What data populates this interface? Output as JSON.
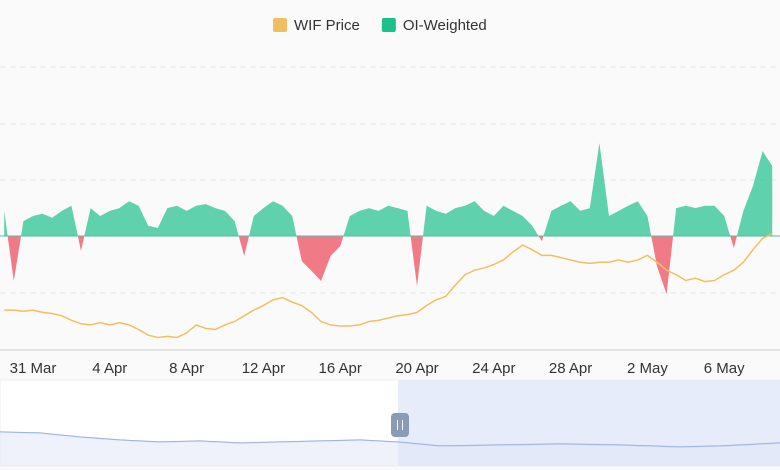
{
  "chart_data": {
    "type": "line-area",
    "categories": [
      null,
      null,
      null,
      "31 Mar",
      null,
      null,
      null,
      null,
      null,
      null,
      null,
      "4 Apr",
      null,
      null,
      null,
      null,
      null,
      null,
      null,
      "8 Apr",
      null,
      null,
      null,
      null,
      null,
      null,
      null,
      "12 Apr",
      null,
      null,
      null,
      null,
      null,
      null,
      null,
      "16 Apr",
      null,
      null,
      null,
      null,
      null,
      null,
      null,
      "20 Apr",
      null,
      null,
      null,
      null,
      null,
      null,
      null,
      "24 Apr",
      null,
      null,
      null,
      null,
      null,
      null,
      null,
      "28 Apr",
      null,
      null,
      null,
      null,
      null,
      null,
      null,
      "2 May",
      null,
      null,
      null,
      null,
      null,
      null,
      null,
      "6 May",
      null,
      null,
      null,
      null,
      null
    ],
    "series": [
      {
        "name": "WIF Price",
        "color": "#f0c060",
        "axis": "y2",
        "values": [
          1.85,
          1.85,
          1.84,
          1.85,
          1.83,
          1.82,
          1.8,
          1.76,
          1.73,
          1.72,
          1.74,
          1.72,
          1.74,
          1.72,
          1.68,
          1.63,
          1.61,
          1.62,
          1.61,
          1.65,
          1.72,
          1.69,
          1.68,
          1.72,
          1.75,
          1.8,
          1.85,
          1.89,
          1.94,
          1.96,
          1.92,
          1.89,
          1.83,
          1.75,
          1.72,
          1.71,
          1.71,
          1.72,
          1.75,
          1.76,
          1.78,
          1.8,
          1.81,
          1.83,
          1.89,
          1.94,
          1.97,
          2.07,
          2.16,
          2.2,
          2.22,
          2.25,
          2.29,
          2.36,
          2.42,
          2.38,
          2.33,
          2.33,
          2.31,
          2.29,
          2.27,
          2.26,
          2.27,
          2.27,
          2.29,
          2.27,
          2.29,
          2.33,
          2.27,
          2.2,
          2.16,
          2.11,
          2.13,
          2.1,
          2.11,
          2.16,
          2.2,
          2.27,
          2.38,
          2.48,
          2.52
        ]
      },
      {
        "name": "OI-Weighted",
        "color": "#1dbf8a",
        "negative_color": "#ef6b7a",
        "values": [
          0.44,
          -0.79,
          0.26,
          0.35,
          0.39,
          0.32,
          0.44,
          0.53,
          -0.26,
          0.49,
          0.35,
          0.44,
          0.49,
          0.61,
          0.53,
          0.18,
          0.14,
          0.49,
          0.53,
          0.44,
          0.53,
          0.56,
          0.49,
          0.44,
          0.26,
          -0.35,
          0.35,
          0.49,
          0.61,
          0.53,
          0.35,
          -0.44,
          -0.61,
          -0.79,
          -0.35,
          -0.18,
          0.35,
          0.44,
          0.49,
          0.44,
          0.53,
          0.49,
          0.44,
          -0.88,
          0.53,
          0.44,
          0.39,
          0.49,
          0.53,
          0.61,
          0.44,
          0.35,
          0.53,
          0.44,
          0.35,
          0.18,
          -0.09,
          0.44,
          0.53,
          0.61,
          0.44,
          0.49,
          1.63,
          0.35,
          0.44,
          0.53,
          0.61,
          0.35,
          -0.53,
          -1.02,
          0.49,
          0.53,
          0.49,
          0.53,
          0.53,
          0.35,
          -0.21,
          0.44,
          0.88,
          1.49,
          1.23
        ]
      }
    ],
    "ylim": [
      -2,
      3
    ],
    "y2lim": [
      1.5,
      4.0
    ]
  }
}
